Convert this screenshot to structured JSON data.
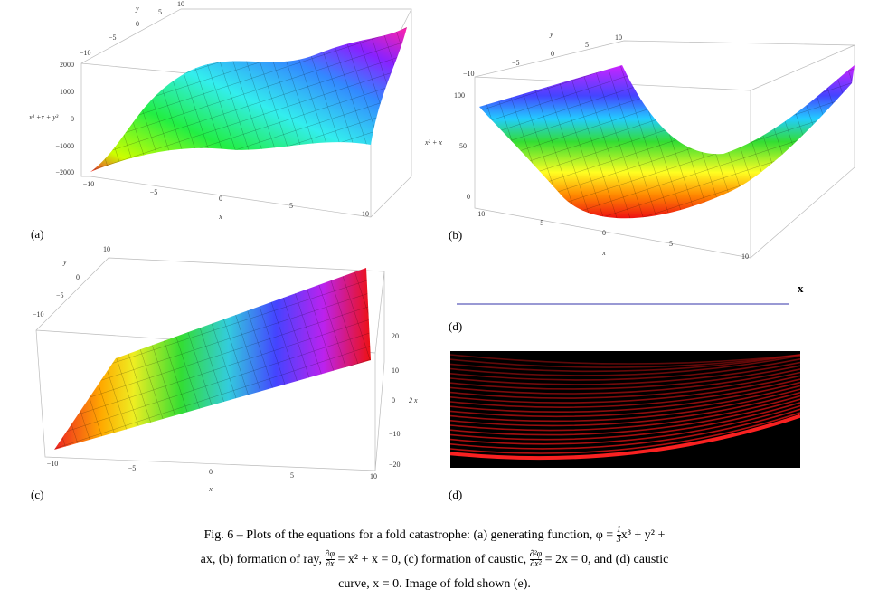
{
  "panels": [
    {
      "label": "(a)",
      "axis_labels": {
        "x": "x",
        "y": "y",
        "z": "x³ +x + y³"
      },
      "x_ticks": [
        "−10",
        "−5",
        "0",
        "5",
        "10"
      ],
      "y_ticks": [
        "−10",
        "−5",
        "0",
        "5",
        "10"
      ],
      "z_ticks": [
        "2000",
        "1000",
        "0",
        "−1000",
        "−2000"
      ]
    },
    {
      "label": "(b)",
      "axis_labels": {
        "x": "x",
        "y": "y",
        "z": "x² + x"
      },
      "x_ticks": [
        "−10",
        "−5",
        "0",
        "5",
        "10"
      ],
      "y_ticks": [
        "−10",
        "−5",
        "0",
        "5",
        "10"
      ],
      "z_ticks": [
        "100",
        "50",
        "0"
      ]
    },
    {
      "label": "(c)",
      "axis_labels": {
        "x": "x",
        "y": "y",
        "z": "2 x"
      },
      "x_ticks": [
        "−10",
        "−5",
        "0",
        "5",
        "10"
      ],
      "y_ticks": [
        "−10",
        "−5",
        "0",
        "10"
      ],
      "z_ticks": [
        "20",
        "10",
        "0",
        "−10",
        "−20"
      ]
    },
    {
      "label": "(d)",
      "axis_labels": {
        "x": "x"
      }
    },
    {
      "label": "(d)"
    }
  ],
  "caption": {
    "lines": [
      [
        {
          "text": "Fig. 6 – Plots of the equations for a fold catastrophe: (a) generating function, φ = "
        },
        {
          "numerator": "1",
          "denominator": "3"
        },
        {
          "text": "x³ + y² +"
        }
      ],
      [
        {
          "text": "ax, (b) formation of ray, "
        },
        {
          "numerator": "∂φ",
          "denominator": "∂x"
        },
        {
          "text": " = x² + x = 0, (c) formation of caustic, "
        },
        {
          "numerator": "∂²φ",
          "denominator": "∂x²"
        },
        {
          "text": " = 2x = 0, and (d) caustic"
        }
      ],
      [
        {
          "text": "curve, x = 0. Image of fold shown (e)."
        }
      ]
    ]
  }
}
